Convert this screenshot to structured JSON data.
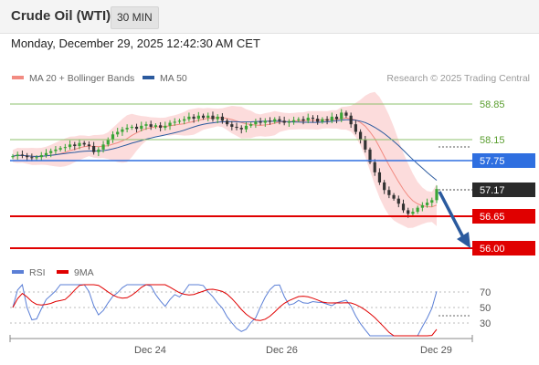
{
  "header": {
    "instrument": "Crude Oil (WTI)",
    "timeframe": "30 MIN",
    "datetime": "Monday, December 29, 2025 12:42:30 AM CET"
  },
  "legend_main": [
    {
      "label": "MA 20 + Bollinger Bands",
      "color": "#f28b82"
    },
    {
      "label": "MA 50",
      "color": "#2b5a9e"
    }
  ],
  "credit": "Research © 2025 Trading Central",
  "legend_osc": [
    {
      "label": "RSI",
      "color": "#5b7fd6"
    },
    {
      "label": "9MA",
      "color": "#e00000"
    }
  ],
  "levels": {
    "r2": "58.85",
    "r1": "58.15",
    "pivot": "57.75",
    "last": "57.17",
    "s1": "56.65",
    "s2": "56.00"
  },
  "colors": {
    "resistance": "#8ec06c",
    "resistance_text": "#5a9e2f",
    "pivot": "#2f6fe0",
    "last": "#2a2a2a",
    "support": "#e00000",
    "arrow": "#2b5a9e",
    "candle_up": "#3aa536",
    "candle_down": "#333333",
    "band_fill": "#fbd6d6"
  },
  "rsi_ticks": [
    "70",
    "50",
    "30"
  ],
  "x_ticks": [
    "Dec 24",
    "Dec 26",
    "Dec 29"
  ],
  "chart_data": {
    "type": "candlestick",
    "price_path": [
      57.82,
      57.85,
      57.83,
      57.8,
      57.78,
      57.8,
      57.84,
      57.88,
      57.92,
      57.95,
      57.98,
      58.0,
      58.05,
      58.02,
      58.08,
      58.05,
      58.02,
      57.9,
      57.95,
      58.05,
      58.15,
      58.25,
      58.3,
      58.35,
      58.38,
      58.4,
      58.36,
      58.42,
      58.45,
      58.4,
      58.43,
      58.38,
      58.42,
      58.48,
      58.5,
      58.52,
      58.55,
      58.6,
      58.56,
      58.62,
      58.58,
      58.62,
      58.55,
      58.6,
      58.52,
      58.45,
      58.4,
      58.38,
      58.35,
      58.42,
      58.45,
      58.5,
      58.48,
      58.52,
      58.5,
      58.55,
      58.52,
      58.48,
      58.5,
      58.53,
      58.55,
      58.52,
      58.58,
      58.56,
      58.5,
      58.55,
      58.52,
      58.6,
      58.55,
      58.68,
      58.62,
      58.45,
      58.3,
      58.15,
      57.95,
      57.7,
      57.5,
      57.3,
      57.15,
      57.05,
      56.98,
      56.88,
      56.75,
      56.68,
      56.72,
      56.8,
      56.85,
      56.9,
      56.95,
      57.17
    ],
    "moving_averages": [
      "MA 20",
      "MA 50"
    ],
    "oscillator": {
      "name": "RSI",
      "signal": "9MA",
      "ticks": [
        70,
        50,
        30
      ]
    },
    "levels": [
      58.85,
      58.15,
      57.75,
      57.17,
      56.65,
      56.0
    ],
    "y_range": [
      55.9,
      59.0
    ],
    "x_labels": [
      "Dec 24",
      "Dec 26",
      "Dec 29"
    ]
  }
}
